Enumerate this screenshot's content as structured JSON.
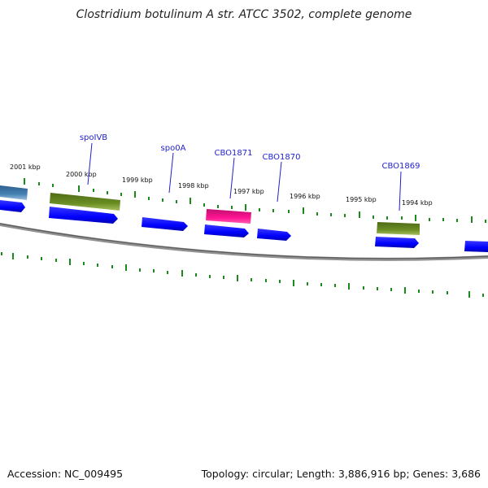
{
  "title": "Clostridium botulinum A str. ATCC 3502, complete genome",
  "footer": {
    "accession": "Accession: NC_009495",
    "summary": "Topology: circular; Length: 3,886,916 bp; Genes: 3,686"
  },
  "map": {
    "kbp_labels": [
      "2001 kbp",
      "2000 kbp",
      "1999 kbp",
      "1998 kbp",
      "1997 kbp",
      "1996 kbp",
      "1995 kbp",
      "1994 kbp"
    ],
    "gene_labels": [
      "spoIVB",
      "spo0A",
      "CBO1871",
      "CBO1870",
      "CBO1869"
    ],
    "colors": {
      "cds": "#0000ff",
      "cds_highlight": "#ff1493",
      "feature_green": "#6b8e23",
      "feature_blue": "#4682b4",
      "ticks": "#008000",
      "label": "#0000cd",
      "backbone": "#808080"
    }
  }
}
